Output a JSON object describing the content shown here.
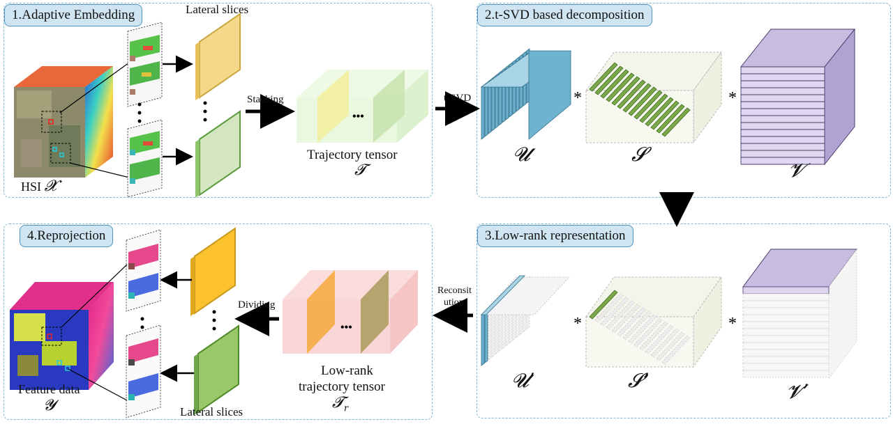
{
  "panels": {
    "p1": {
      "title": "1.Adaptive Embedding"
    },
    "p2": {
      "title": "2.t-SVD based decomposition"
    },
    "p3": {
      "title": "3.Low-rank representation"
    },
    "p4": {
      "title": "4.Reprojection"
    }
  },
  "labels": {
    "lateral_slices_top": "Lateral slices",
    "lateral_slices_bottom": "Lateral slices",
    "stacking": "Stacking",
    "trajectory_tensor": "Trajectory tensor",
    "hsi": "HSI",
    "tsvd": "t-SVD",
    "dividing": "Dividing",
    "reconstitution_1": "Reconsit",
    "reconstitution_2": "ution",
    "lowrank_1": "Low-rank",
    "lowrank_2": "trajectory tensor",
    "feature_data": "Feature data",
    "ellipsis": "•••",
    "star": "*"
  },
  "symbols": {
    "X": "𝓧",
    "T": "𝓣",
    "U": "𝓤",
    "S": "𝓢",
    "V": "𝓥",
    "U_prime": "𝓤’",
    "S_prime": "𝓢’",
    "V_prime": "𝓥’",
    "Y": "𝓨",
    "T_r": "𝓣",
    "T_r_sub": "r"
  },
  "colors": {
    "panel_border": "#7fb7d6",
    "title_fill": "#cfe6f2",
    "u_blue": "#6fb3d0",
    "s_green": "#7aa84a",
    "v_purple": "#c8bde0",
    "yellow_slice": "#f5d98a",
    "green_slice": "#d3e6bf",
    "orange_slice": "#f7bf2e",
    "pink_tensor": "#f9d2d2",
    "light_green_tensor": "#e2f5d6"
  }
}
